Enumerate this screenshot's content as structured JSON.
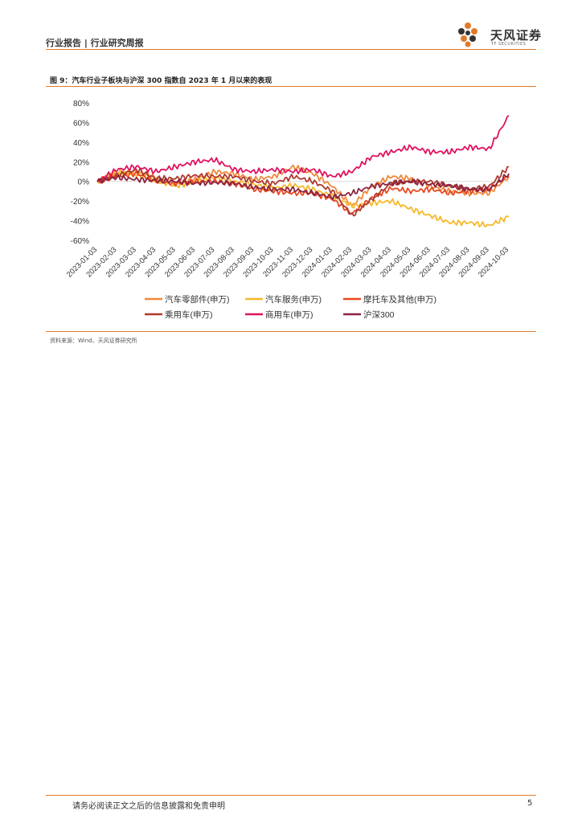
{
  "header": {
    "breadcrumb": "行业报告 | 行业研究周报"
  },
  "logo": {
    "cn": "天风证券",
    "en": "TF SECURITIES"
  },
  "figure": {
    "title": "图 9：汽车行业子板块与沪深 300 指数自 2023 年 1 月以来的表现"
  },
  "source": "资料来源：Wind、天风证券研究所",
  "footer": {
    "disclaimer": "请务必阅读正文之后的信息披露和免责申明",
    "page": "5"
  },
  "colors": {
    "accent": "#e07b2c",
    "汽车零部件(申万)": "#f0883a",
    "汽车服务(申万)": "#f5b829",
    "摩托车及其他(申万)": "#e8471f",
    "乘用车(申万)": "#b0392e",
    "商用车(申万)": "#e0115f",
    "沪深300": "#8a2440"
  },
  "chart_data": {
    "type": "line",
    "title": "汽车行业子板块与沪深 300 指数自 2023 年 1 月以来的表现",
    "xlabel": "",
    "ylabel": "",
    "ylim": [
      -0.6,
      0.8
    ],
    "yticks": [
      "80%",
      "60%",
      "40%",
      "20%",
      "0%",
      "-20%",
      "-40%",
      "-60%"
    ],
    "categories": [
      "2023-01-03",
      "2023-02-03",
      "2023-03-03",
      "2023-04-03",
      "2023-05-03",
      "2023-06-03",
      "2023-07-03",
      "2023-08-03",
      "2023-09-03",
      "2023-10-03",
      "2023-11-03",
      "2023-12-03",
      "2024-01-03",
      "2024-02-03",
      "2024-03-03",
      "2024-04-03",
      "2024-05-03",
      "2024-06-03",
      "2024-07-03",
      "2024-08-03",
      "2024-09-03",
      "2024-10-03"
    ],
    "legend_position": "bottom",
    "series": [
      {
        "name": "汽车零部件(申万)",
        "values": [
          0.0,
          0.08,
          0.1,
          0.04,
          -0.02,
          0.02,
          0.1,
          0.08,
          0.02,
          0.05,
          0.15,
          0.08,
          -0.05,
          -0.25,
          -0.05,
          0.05,
          0.03,
          -0.05,
          -0.1,
          -0.12,
          -0.12,
          0.05
        ]
      },
      {
        "name": "汽车服务(申万)",
        "values": [
          0.0,
          0.1,
          0.07,
          0.01,
          -0.05,
          0.0,
          0.04,
          0.0,
          -0.03,
          -0.07,
          -0.04,
          -0.08,
          -0.15,
          -0.25,
          -0.22,
          -0.2,
          -0.28,
          -0.35,
          -0.42,
          -0.42,
          -0.45,
          -0.36
        ]
      },
      {
        "name": "摩托车及其他(申万)",
        "values": [
          0.0,
          0.05,
          0.08,
          0.0,
          -0.02,
          0.0,
          0.0,
          -0.02,
          -0.08,
          -0.1,
          -0.12,
          -0.12,
          -0.18,
          -0.33,
          -0.17,
          -0.07,
          -0.1,
          -0.08,
          -0.12,
          -0.1,
          -0.08,
          0.06
        ]
      },
      {
        "name": "乘用车(申万)",
        "values": [
          0.0,
          0.06,
          0.12,
          0.03,
          0.03,
          0.06,
          0.05,
          0.05,
          0.0,
          -0.02,
          0.05,
          0.0,
          -0.1,
          -0.35,
          -0.18,
          -0.02,
          0.0,
          0.0,
          -0.05,
          -0.08,
          -0.05,
          0.15
        ]
      },
      {
        "name": "商用车(申万)",
        "values": [
          0.0,
          0.12,
          0.15,
          0.1,
          0.15,
          0.2,
          0.22,
          0.12,
          0.1,
          0.12,
          0.1,
          0.12,
          0.05,
          0.1,
          0.25,
          0.3,
          0.35,
          0.3,
          0.3,
          0.35,
          0.33,
          0.67
        ]
      },
      {
        "name": "沪深300",
        "values": [
          0.0,
          0.04,
          0.02,
          0.01,
          0.0,
          -0.02,
          -0.01,
          -0.02,
          -0.06,
          -0.08,
          -0.08,
          -0.12,
          -0.16,
          -0.12,
          -0.05,
          -0.02,
          0.0,
          -0.03,
          -0.04,
          -0.08,
          -0.08,
          0.08
        ]
      }
    ]
  }
}
